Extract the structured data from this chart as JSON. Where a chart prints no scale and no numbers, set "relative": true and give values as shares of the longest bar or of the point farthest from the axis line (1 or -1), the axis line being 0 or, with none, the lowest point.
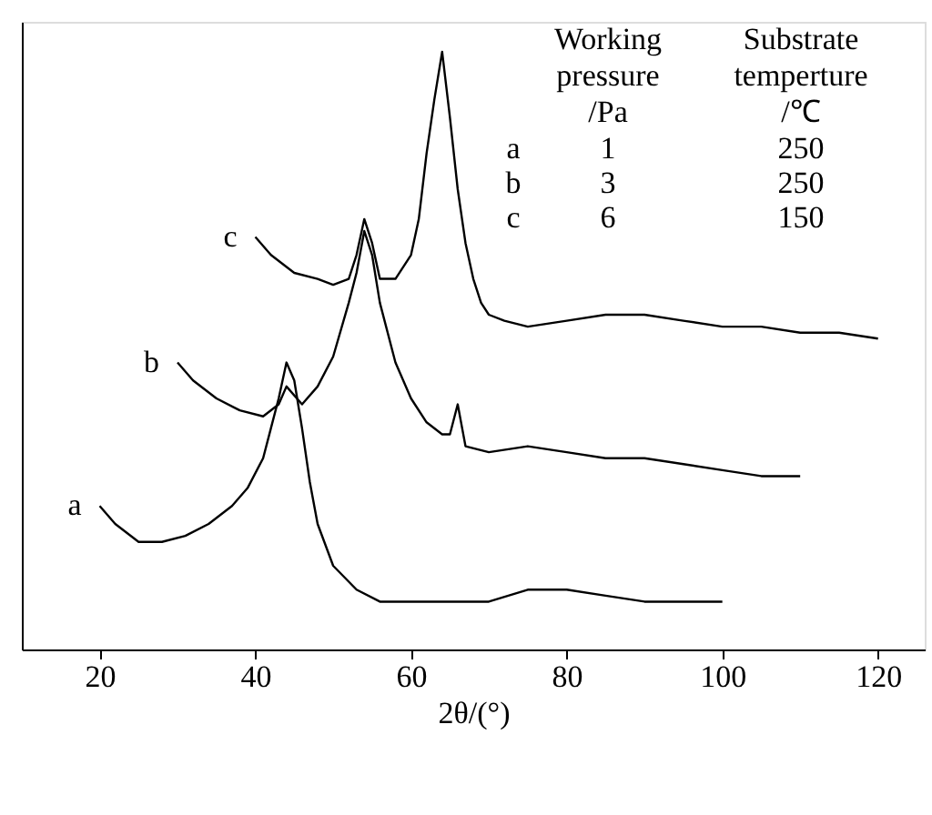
{
  "chart_data": {
    "type": "line",
    "relative": true,
    "xlabel": "2θ/(°)",
    "xlim": [
      10,
      126
    ],
    "xticks": [
      20,
      40,
      60,
      80,
      100,
      120
    ],
    "tick_labels": "x",
    "grid": false,
    "annotations": [
      "Working\npressure\n/Pa",
      "Substrate\ntemperture\n/℃",
      "a",
      "1",
      "250",
      "b",
      "3",
      "250",
      "c",
      "6",
      "150"
    ],
    "series": [
      {
        "name": "a",
        "color": "#000000",
        "x": [
          20,
          22,
          25,
          28,
          31,
          34,
          37,
          39,
          41,
          42,
          43,
          44,
          45,
          46,
          47,
          48,
          50,
          53,
          56,
          60,
          65,
          70,
          75,
          80,
          85,
          90,
          95,
          100
        ],
        "values": [
          0.24,
          0.21,
          0.18,
          0.18,
          0.19,
          0.21,
          0.24,
          0.27,
          0.32,
          0.37,
          0.42,
          0.48,
          0.45,
          0.37,
          0.28,
          0.21,
          0.14,
          0.1,
          0.08,
          0.08,
          0.08,
          0.08,
          0.1,
          0.1,
          0.09,
          0.08,
          0.08,
          0.08
        ]
      },
      {
        "name": "b",
        "color": "#000000",
        "x": [
          30,
          32,
          35,
          38,
          41,
          43,
          44,
          46,
          48,
          50,
          52,
          53,
          54,
          55,
          56,
          58,
          60,
          62,
          64,
          65,
          66,
          67,
          70,
          75,
          80,
          85,
          90,
          95,
          100,
          105,
          110
        ],
        "values": [
          0.48,
          0.45,
          0.42,
          0.4,
          0.39,
          0.41,
          0.44,
          0.41,
          0.44,
          0.49,
          0.58,
          0.63,
          0.7,
          0.66,
          0.58,
          0.48,
          0.42,
          0.38,
          0.36,
          0.36,
          0.41,
          0.34,
          0.33,
          0.34,
          0.33,
          0.32,
          0.32,
          0.31,
          0.3,
          0.29,
          0.29
        ]
      },
      {
        "name": "c",
        "color": "#000000",
        "x": [
          40,
          42,
          45,
          48,
          50,
          52,
          53,
          54,
          55,
          56,
          58,
          60,
          61,
          62,
          63,
          64,
          65,
          66,
          67,
          68,
          69,
          70,
          72,
          75,
          80,
          85,
          90,
          95,
          100,
          105,
          110,
          115,
          120
        ],
        "values": [
          0.69,
          0.66,
          0.63,
          0.62,
          0.61,
          0.62,
          0.66,
          0.72,
          0.68,
          0.62,
          0.62,
          0.66,
          0.72,
          0.83,
          0.92,
          1.0,
          0.89,
          0.77,
          0.68,
          0.62,
          0.58,
          0.56,
          0.55,
          0.54,
          0.55,
          0.56,
          0.56,
          0.55,
          0.54,
          0.54,
          0.53,
          0.53,
          0.52
        ]
      }
    ]
  }
}
